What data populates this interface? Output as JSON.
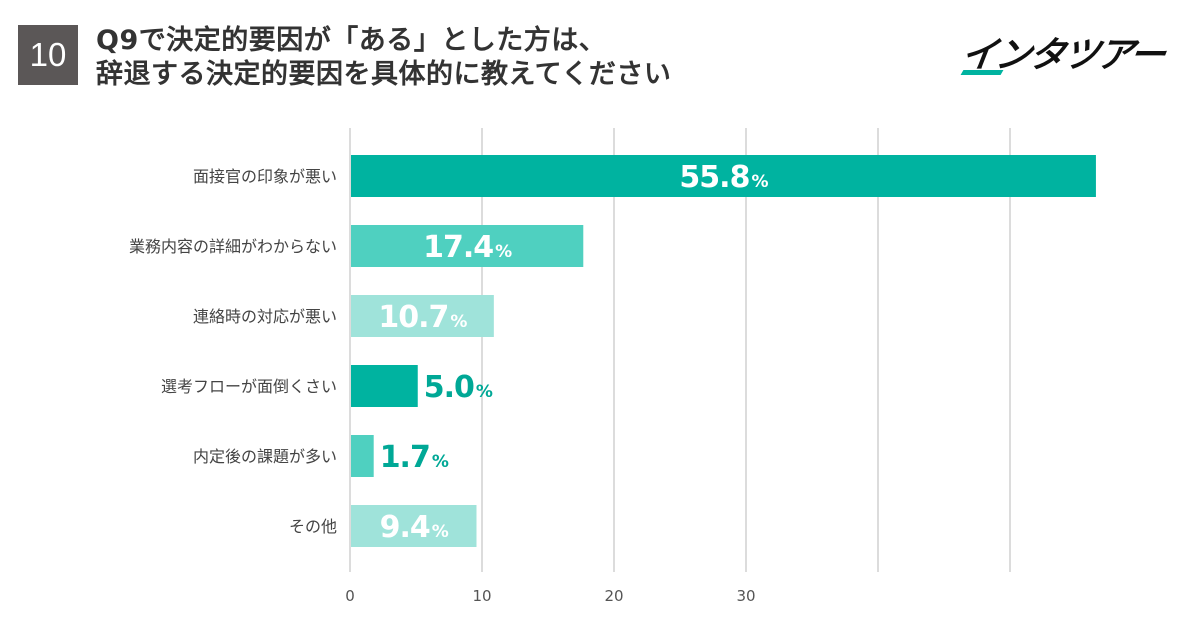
{
  "header": {
    "question_number": "10",
    "title_line1": "Q9で決定的要因が「ある」とした方は、",
    "title_line2": "辞退する決定的要因を具体的に教えてください"
  },
  "brand": {
    "logo_text": "インタツアー",
    "accent_color": "#00b3a0"
  },
  "chart_data": {
    "type": "bar",
    "orientation": "horizontal",
    "title": "Q9で決定的要因が「ある」とした方は、辞退する決定的要因を具体的に教えてください",
    "categories": [
      "面接官の印象が悪い",
      "業務内容の詳細がわからない",
      "連絡時の対応が悪い",
      "選考フローが面倒くさい",
      "内定後の課題が多い",
      "その他"
    ],
    "values": [
      55.8,
      17.4,
      10.7,
      5.0,
      1.7,
      9.4
    ],
    "value_labels": [
      "55.8",
      "17.4",
      "10.7",
      "5.0",
      "1.7",
      "9.4"
    ],
    "unit": "%",
    "colors": [
      "#00b3a0",
      "#4fd0c0",
      "#9fe3da",
      "#00b3a0",
      "#4fd0c0",
      "#9fe3da"
    ],
    "label_dark": "#00a896",
    "xtick_labels": [
      "0",
      "10",
      "20",
      "30"
    ],
    "xlim": [
      0,
      60
    ],
    "grid": true
  }
}
